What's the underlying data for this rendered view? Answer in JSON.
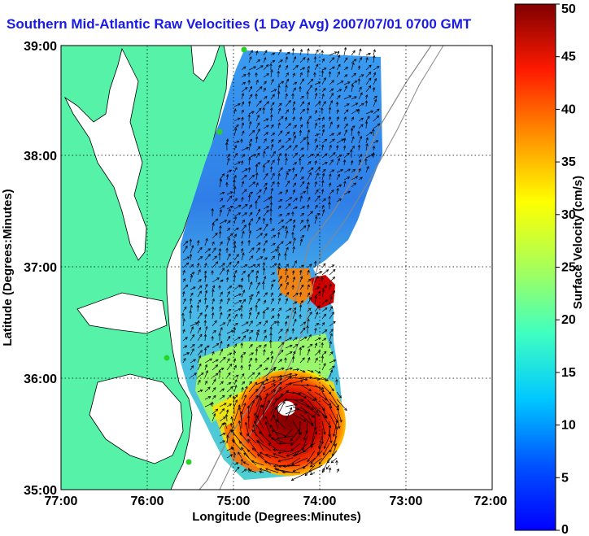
{
  "title": "Southern Mid-Atlantic Raw Velocities (1 Day Avg) 2007/07/01 0700 GMT",
  "axes": {
    "xlabel": "Longitude (Degrees:Minutes)",
    "ylabel": "Latitude (Degrees:Minutes)",
    "xticks": [
      "77:00",
      "76:00",
      "75:00",
      "74:00",
      "73:00",
      "72:00"
    ],
    "yticks": [
      "39:00",
      "38:00",
      "37:00",
      "36:00",
      "35:00"
    ],
    "grid": true
  },
  "colorbar": {
    "label": "Surface Velocity (cm/s)",
    "ticks": [
      "50",
      "45",
      "40",
      "35",
      "30",
      "25",
      "20",
      "15",
      "10",
      "5",
      "0"
    ],
    "range": [
      0,
      50
    ],
    "colormap": "jet"
  },
  "colors": {
    "land": "#55f2a8",
    "title": "#1a1ae6",
    "station": "#2bd12b"
  }
}
